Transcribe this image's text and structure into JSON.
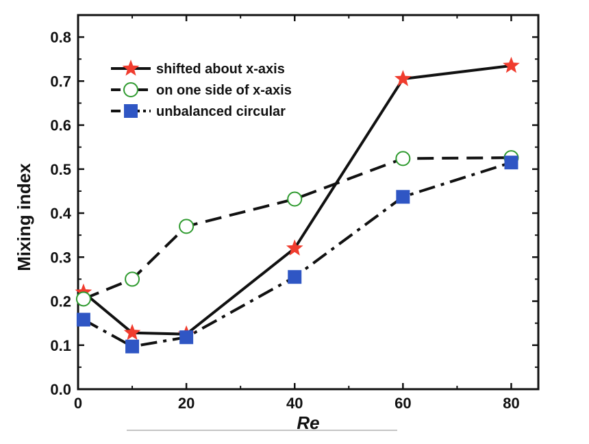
{
  "chart_data": {
    "type": "line",
    "xlabel": "Re",
    "ylabel": "Mixing index",
    "xlim": [
      0,
      85
    ],
    "ylim": [
      0,
      0.85
    ],
    "x_ticks": [
      0,
      20,
      40,
      60,
      80
    ],
    "x_tick_labels": [
      "0",
      "20",
      "40",
      "60",
      "80"
    ],
    "y_ticks": [
      0.0,
      0.1,
      0.2,
      0.3,
      0.4,
      0.5,
      0.6,
      0.7,
      0.8
    ],
    "y_tick_labels": [
      "0.0",
      "0.1",
      "0.2",
      "0.3",
      "0.4",
      "0.5",
      "0.6",
      "0.7",
      "0.8"
    ],
    "grid": false,
    "legend_position": "top-left",
    "series": [
      {
        "name": "shifted about x-axis",
        "marker": "star",
        "line_style": "solid",
        "marker_color": "#f03c2e",
        "x": [
          1,
          10,
          20,
          40,
          60,
          80
        ],
        "y": [
          0.22,
          0.128,
          0.125,
          0.32,
          0.705,
          0.735
        ]
      },
      {
        "name": "on one side of x-axis",
        "marker": "open-circle",
        "line_style": "dashed",
        "marker_color": "#2e9a2e",
        "x": [
          1,
          10,
          20,
          40,
          60,
          80
        ],
        "y": [
          0.205,
          0.25,
          0.37,
          0.432,
          0.524,
          0.526
        ]
      },
      {
        "name": "unbalanced circular",
        "marker": "square",
        "line_style": "dash-dot",
        "marker_color": "#2f56c4",
        "x": [
          1,
          10,
          20,
          40,
          60,
          80
        ],
        "y": [
          0.158,
          0.097,
          0.118,
          0.255,
          0.437,
          0.515
        ]
      }
    ]
  }
}
